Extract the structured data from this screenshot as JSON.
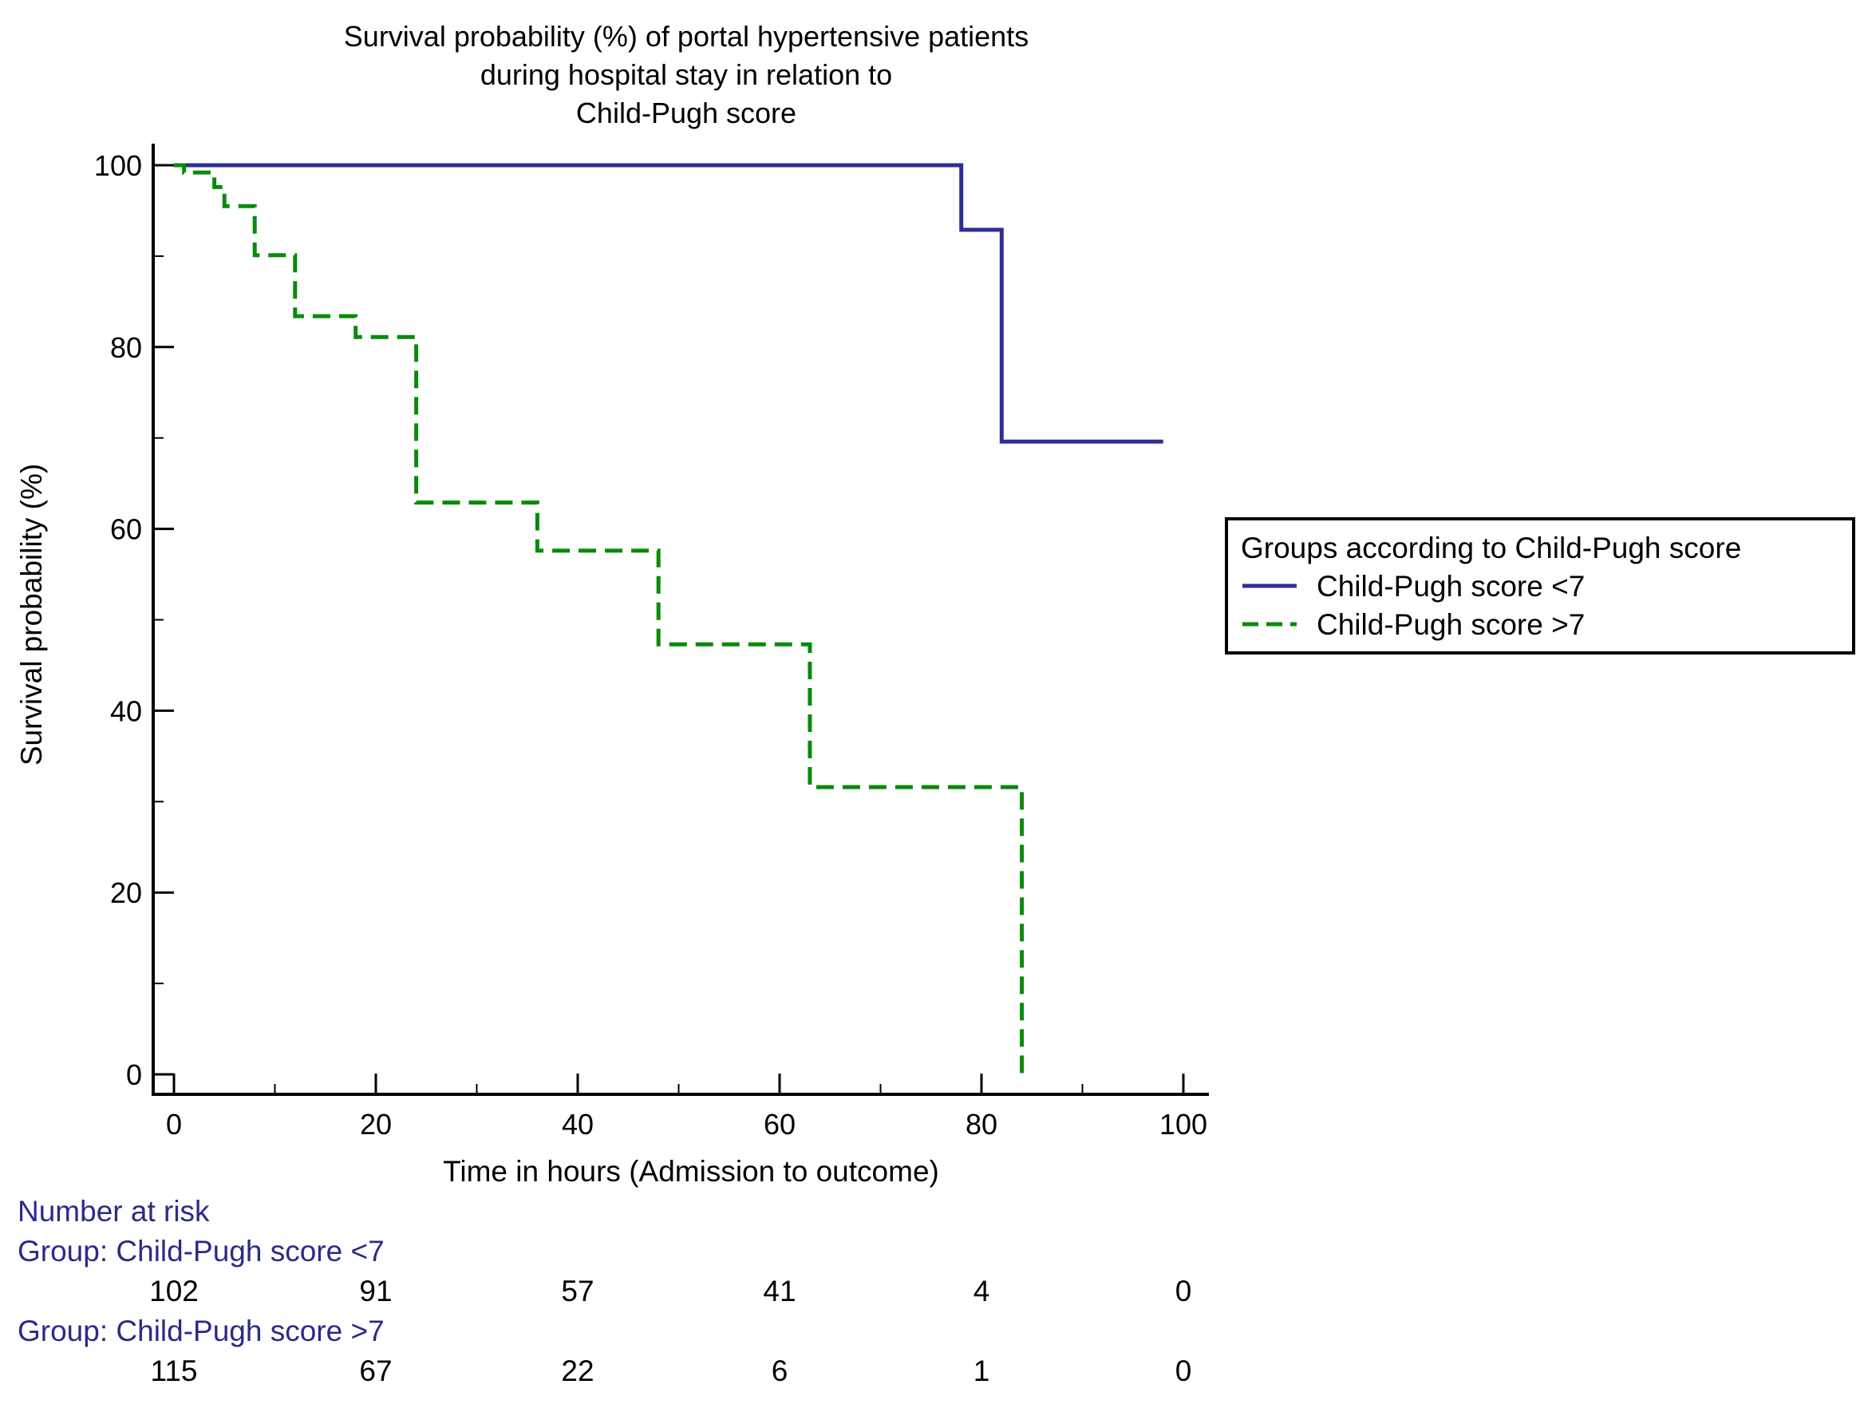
{
  "chart_data": {
    "type": "line",
    "subtype": "kaplan-meier-step",
    "title_lines": [
      "Survival probability (%) of portal hypertensive patients",
      "during hospital stay in relation to",
      "Child-Pugh score"
    ],
    "xlabel": "Time in hours (Admission to outcome)",
    "ylabel": "Survival probability (%)",
    "xlim": [
      0,
      100
    ],
    "ylim": [
      0,
      100
    ],
    "xticks": [
      0,
      20,
      40,
      60,
      80,
      100
    ],
    "yticks": [
      0,
      20,
      40,
      60,
      80,
      100
    ],
    "grid": false,
    "legend": {
      "title": "Groups according to Child-Pugh score",
      "position": "right"
    },
    "series": [
      {
        "name": "Child-Pugh score <7",
        "color": "#2e2e9a",
        "style": "solid",
        "points": [
          [
            0,
            100
          ],
          [
            78,
            100
          ],
          [
            78,
            92.9
          ],
          [
            82,
            92.9
          ],
          [
            82,
            69.6
          ],
          [
            98,
            69.6
          ]
        ]
      },
      {
        "name": "Child-Pugh score >7",
        "color": "#0a8a0a",
        "style": "dashed",
        "points": [
          [
            0,
            100
          ],
          [
            1,
            100
          ],
          [
            1,
            99.2
          ],
          [
            4,
            99.2
          ],
          [
            4,
            97.6
          ],
          [
            5,
            97.6
          ],
          [
            5,
            95.5
          ],
          [
            8,
            95.5
          ],
          [
            8,
            90.1
          ],
          [
            12,
            90.1
          ],
          [
            12,
            83.4
          ],
          [
            18,
            83.4
          ],
          [
            18,
            81.1
          ],
          [
            24,
            81.1
          ],
          [
            24,
            62.9
          ],
          [
            36,
            62.9
          ],
          [
            36,
            57.6
          ],
          [
            48,
            57.6
          ],
          [
            48,
            47.3
          ],
          [
            63,
            47.3
          ],
          [
            63,
            31.6
          ],
          [
            84,
            31.6
          ],
          [
            84,
            0
          ]
        ]
      }
    ],
    "risk_table": {
      "title": "Number at risk",
      "groups": [
        {
          "label": "Group: Child-Pugh score <7",
          "counts": [
            "102",
            "91",
            "57",
            "41",
            "4",
            "0"
          ]
        },
        {
          "label": "Group: Child-Pugh score >7",
          "counts": [
            "115",
            "67",
            "22",
            "6",
            "1",
            "0"
          ]
        }
      ]
    }
  }
}
